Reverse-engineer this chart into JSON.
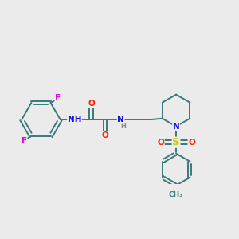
{
  "background_color": "#ebebeb",
  "bond_color": "#3a7a7a",
  "bond_width": 1.4,
  "atom_colors": {
    "F": "#ee00ee",
    "O": "#ff2200",
    "N": "#1111dd",
    "S": "#cccc00",
    "C": "#3a7a7a",
    "H": "#888888",
    "CH3": "#3a7a7a"
  },
  "font_size": 7.5
}
